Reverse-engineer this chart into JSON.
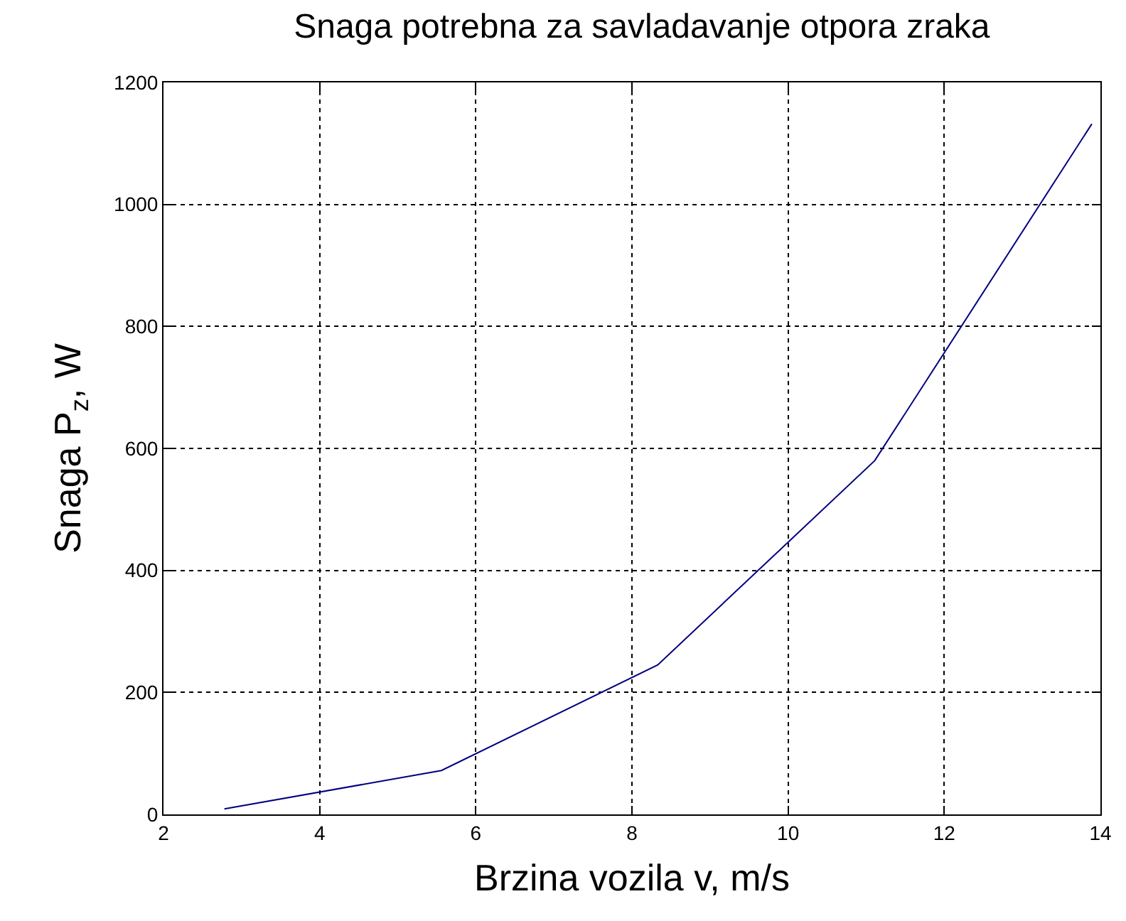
{
  "chart_data": {
    "type": "line",
    "title": "Snaga potrebna za savladavanje otpora zraka",
    "xlabel": "Brzina vozila v, m/s",
    "ylabel": "Snaga P$_{z}$, W",
    "x": [
      2.78,
      5.56,
      8.33,
      11.11,
      13.89
    ],
    "series": [
      {
        "color": "#000080",
        "values": [
          9,
          72,
          245,
          580,
          1132
        ]
      }
    ],
    "xlim": [
      2,
      14
    ],
    "xticks": [
      2,
      4,
      6,
      8,
      10,
      12,
      14
    ],
    "ylim": [
      0,
      1200
    ],
    "yticks": [
      0,
      200,
      400,
      600,
      800,
      1000,
      1200
    ],
    "grid": true,
    "marker": "none",
    "line_style": "solid"
  }
}
